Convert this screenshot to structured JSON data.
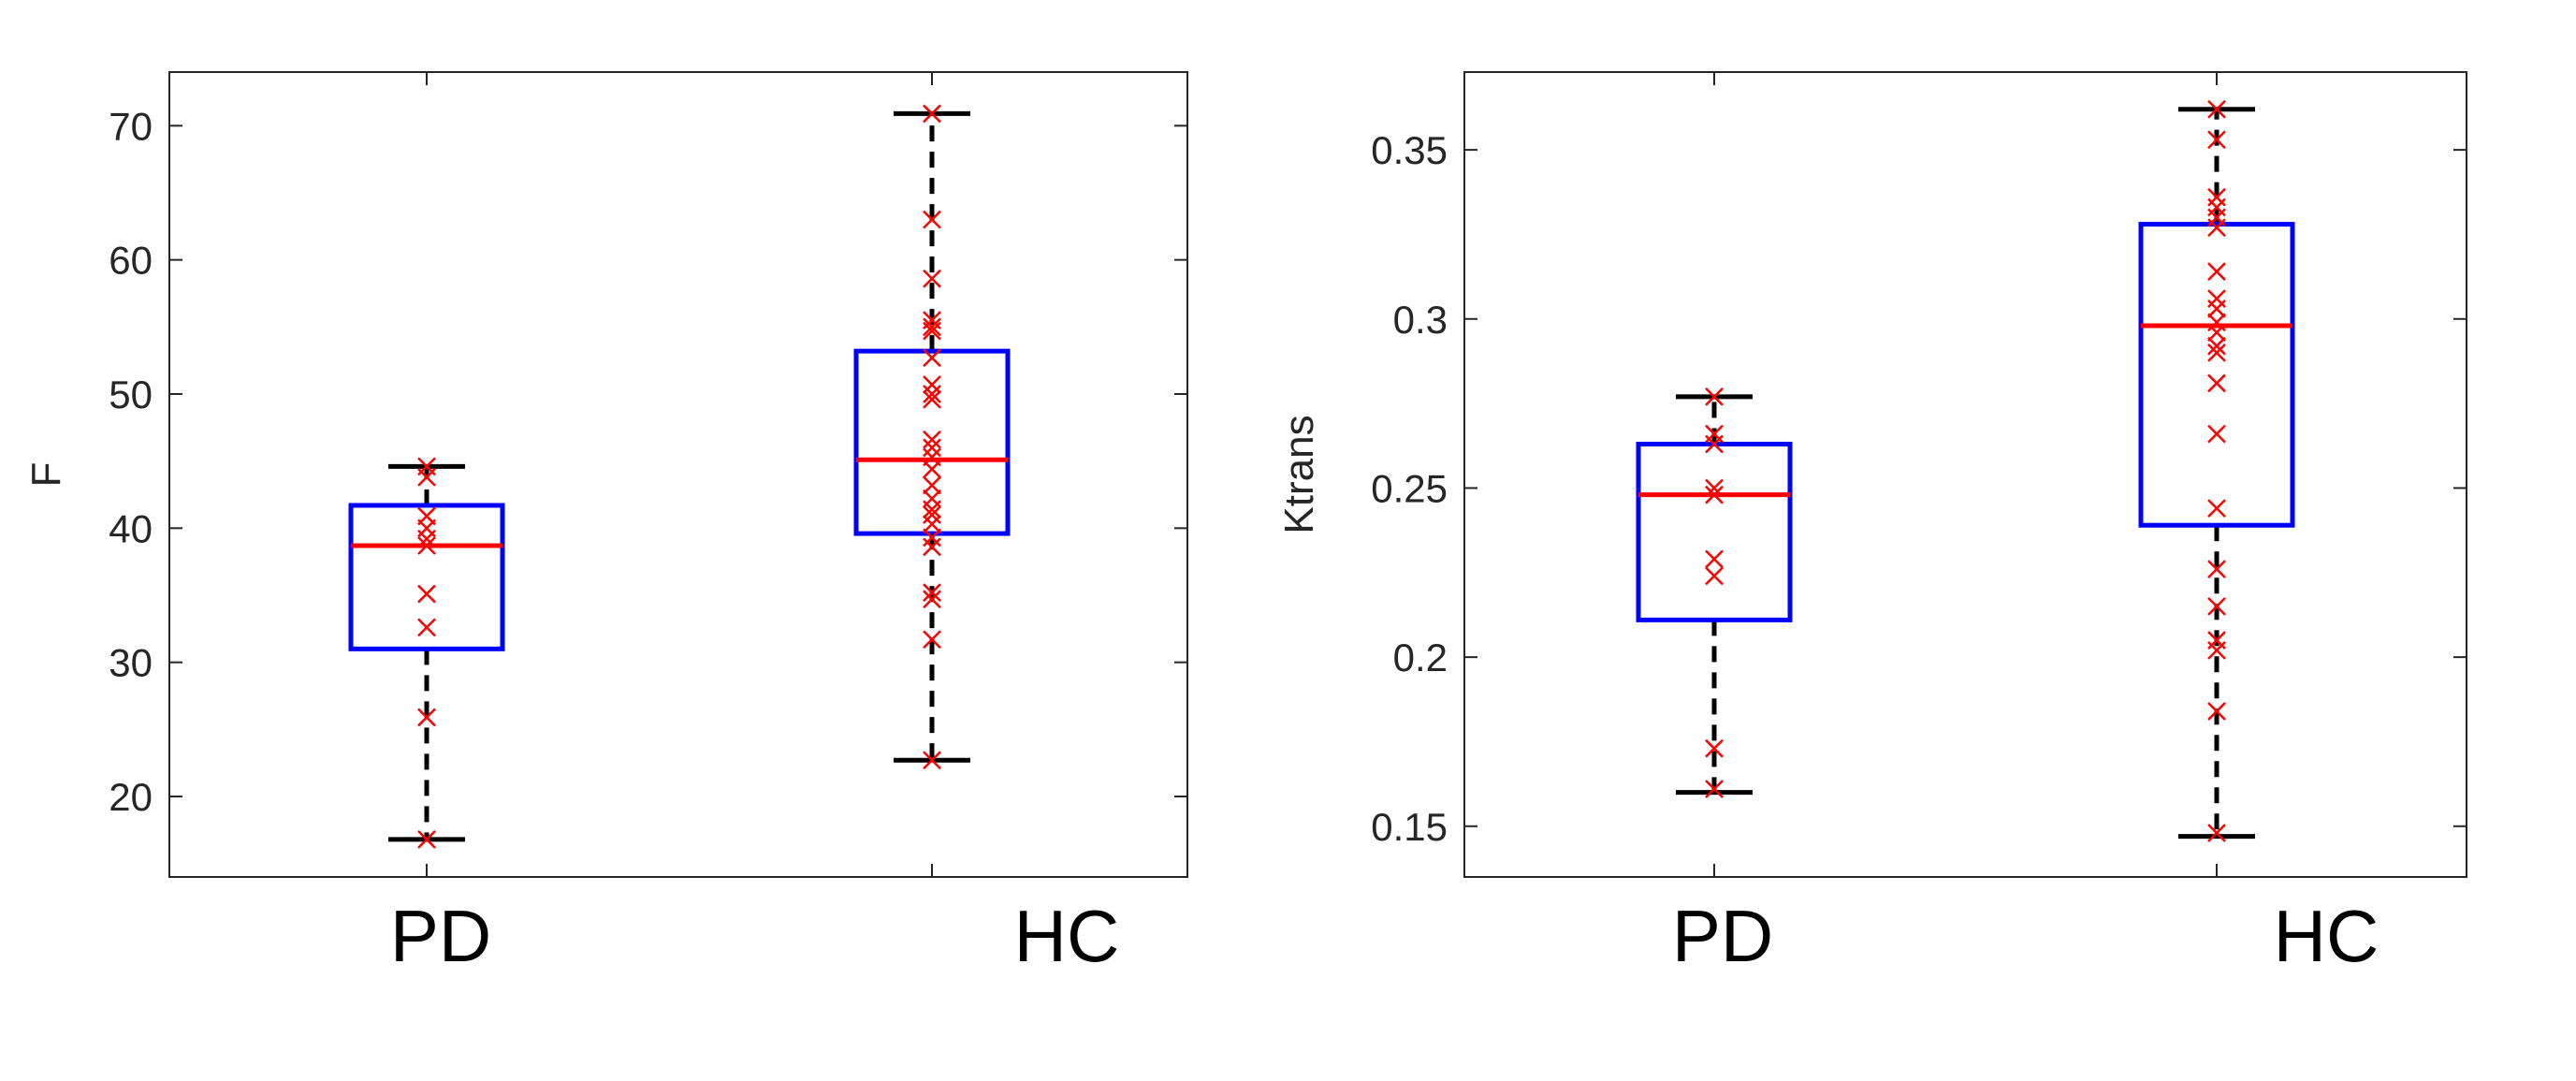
{
  "chart_data": [
    {
      "type": "box",
      "ylabel": "F",
      "categories": [
        "PD",
        "HC"
      ],
      "ylim": [
        14,
        74
      ],
      "yticks": [
        20,
        30,
        40,
        50,
        60,
        70
      ],
      "grid": false,
      "colors": {
        "box": "#0000ff",
        "median": "#ff0000",
        "whisker": "#000000",
        "points": "#ff0000"
      },
      "boxes": [
        {
          "category": "PD",
          "min": 16.8,
          "q1": 31.0,
          "median": 38.7,
          "q3": 41.7,
          "max": 44.6,
          "points": [
            44.6,
            43.8,
            40.9,
            40.0,
            39.2,
            38.7,
            35.1,
            32.6,
            25.9,
            16.8
          ]
        },
        {
          "category": "HC",
          "min": 22.7,
          "q1": 39.6,
          "median": 45.1,
          "q3": 53.2,
          "max": 70.9,
          "points": [
            70.9,
            63.0,
            58.6,
            55.5,
            55.0,
            54.7,
            52.7,
            50.7,
            50.0,
            49.6,
            46.6,
            46.0,
            45.3,
            44.4,
            43.2,
            42.2,
            41.4,
            41.0,
            40.3,
            39.3,
            38.6,
            35.2,
            34.7,
            31.7,
            22.7
          ]
        }
      ]
    },
    {
      "type": "box",
      "ylabel": "Ktrans",
      "categories": [
        "PD",
        "HC"
      ],
      "ylim": [
        0.135,
        0.373
      ],
      "yticks": [
        0.15,
        0.2,
        0.25,
        0.3,
        0.35
      ],
      "ytick_labels": [
        "0.15",
        "0.2",
        "0.25",
        "0.3",
        "0.35"
      ],
      "grid": false,
      "colors": {
        "box": "#0000ff",
        "median": "#ff0000",
        "whisker": "#000000",
        "points": "#ff0000"
      },
      "boxes": [
        {
          "category": "PD",
          "min": 0.16,
          "q1": 0.211,
          "median": 0.248,
          "q3": 0.263,
          "max": 0.277,
          "points": [
            0.277,
            0.266,
            0.263,
            0.25,
            0.248,
            0.229,
            0.224,
            0.173,
            0.161
          ]
        },
        {
          "category": "HC",
          "min": 0.147,
          "q1": 0.239,
          "median": 0.298,
          "q3": 0.328,
          "max": 0.362,
          "points": [
            0.362,
            0.353,
            0.336,
            0.333,
            0.33,
            0.327,
            0.314,
            0.306,
            0.303,
            0.299,
            0.296,
            0.292,
            0.29,
            0.281,
            0.266,
            0.244,
            0.226,
            0.215,
            0.205,
            0.202,
            0.184,
            0.148
          ]
        }
      ]
    }
  ]
}
